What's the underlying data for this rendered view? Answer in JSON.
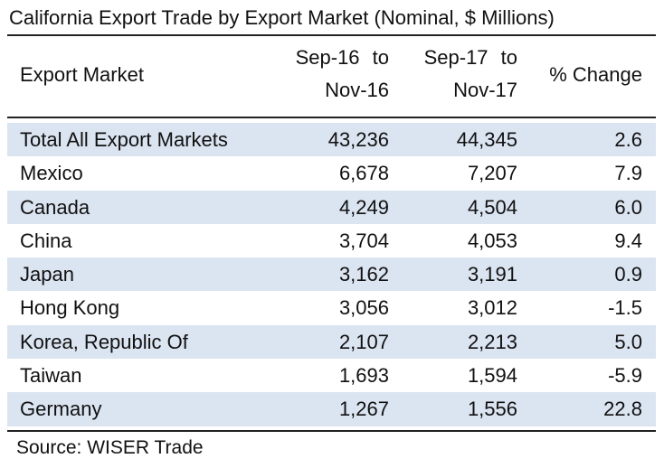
{
  "table": {
    "title": "California Export Trade by Export Market (Nominal, $ Millions)",
    "headers": {
      "market": "Export Market",
      "period1_line1": "Sep-16 to",
      "period1_line2": "Nov-16",
      "period2_line1": "Sep-17 to",
      "period2_line2": "Nov-17",
      "change": "% Change"
    },
    "rows": [
      {
        "market": "Total All Export Markets",
        "v1": "43,236",
        "v2": "44,345",
        "change": "2.6"
      },
      {
        "market": "Mexico",
        "v1": "6,678",
        "v2": "7,207",
        "change": "7.9"
      },
      {
        "market": "Canada",
        "v1": "4,249",
        "v2": "4,504",
        "change": "6.0"
      },
      {
        "market": "China",
        "v1": "3,704",
        "v2": "4,053",
        "change": "9.4"
      },
      {
        "market": "Japan",
        "v1": "3,162",
        "v2": "3,191",
        "change": "0.9"
      },
      {
        "market": "Hong Kong",
        "v1": "3,056",
        "v2": "3,012",
        "change": "-1.5"
      },
      {
        "market": "Korea, Republic Of",
        "v1": "2,107",
        "v2": "2,213",
        "change": "5.0"
      },
      {
        "market": "Taiwan",
        "v1": "1,693",
        "v2": "1,594",
        "change": "-5.9"
      },
      {
        "market": "Germany",
        "v1": "1,267",
        "v2": "1,556",
        "change": "22.8"
      }
    ],
    "source": "Source: WISER Trade",
    "shade_color": "#dbe4f1"
  }
}
